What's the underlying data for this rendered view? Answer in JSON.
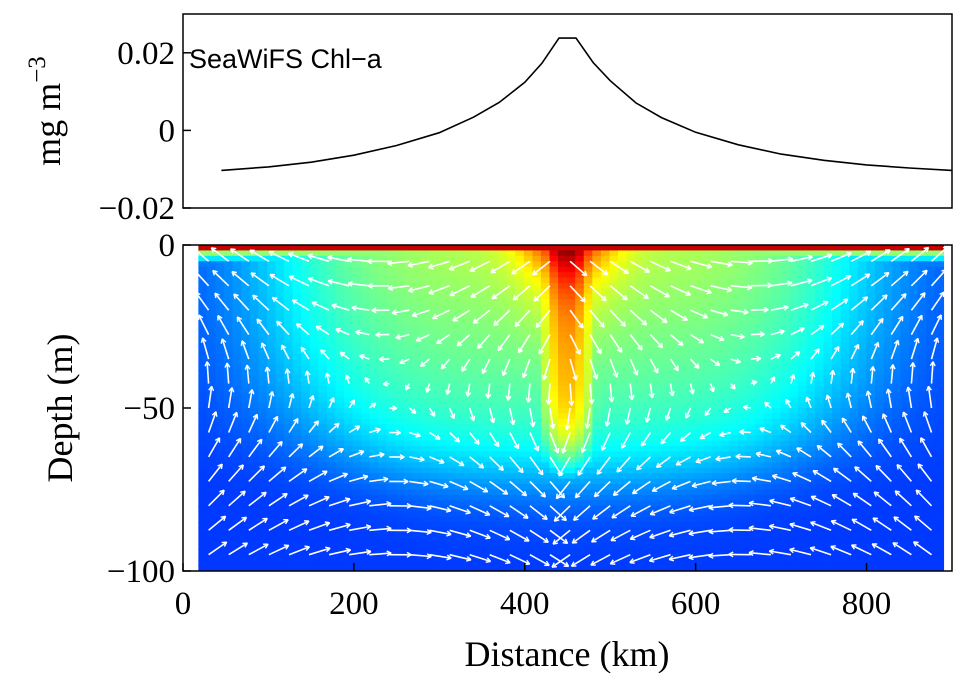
{
  "chart_data": [
    {
      "type": "line",
      "title": "",
      "annotation": "SeaWiFS Chl−a",
      "ylabel": "mg m",
      "ylabel_exponent": "−3",
      "xlim": [
        0,
        900
      ],
      "ylim": [
        -0.02,
        0.03
      ],
      "yticks": [
        {
          "value": 0.02,
          "label": "0.02"
        },
        {
          "value": 0,
          "label": "0"
        },
        {
          "value": -0.02,
          "label": "−0.02"
        }
      ],
      "grid": false,
      "series": [
        {
          "x": [
            45,
            100,
            150,
            200,
            250,
            300,
            340,
            370,
            400,
            420,
            440,
            460,
            480,
            500,
            530,
            560,
            600,
            650,
            700,
            750,
            800,
            850,
            900
          ],
          "y": [
            -0.0103,
            -0.0094,
            -0.0082,
            -0.0064,
            -0.0039,
            -0.0006,
            0.0034,
            0.0072,
            0.0124,
            0.0173,
            0.0238,
            0.0238,
            0.0175,
            0.0128,
            0.0071,
            0.0033,
            -0.0005,
            -0.0037,
            -0.0061,
            -0.0077,
            -0.0089,
            -0.0097,
            -0.0103
          ]
        }
      ]
    },
    {
      "type": "heatmap",
      "title": "",
      "xlabel": "Distance (km)",
      "ylabel": "Depth (m)",
      "xlim": [
        0,
        900
      ],
      "ylim": [
        -100,
        0
      ],
      "xticks": [
        {
          "value": 0,
          "label": "0"
        },
        {
          "value": 200,
          "label": "200"
        },
        {
          "value": 400,
          "label": "400"
        },
        {
          "value": 600,
          "label": "600"
        },
        {
          "value": 800,
          "label": "800"
        }
      ],
      "yticks": [
        {
          "value": 0,
          "label": "0"
        },
        {
          "value": -50,
          "label": "−50"
        },
        {
          "value": -100,
          "label": "−100"
        }
      ],
      "field_extent_x": [
        18,
        890
      ],
      "field_center_x": 450,
      "colormap": [
        "#00008f",
        "#0000ff",
        "#0080ff",
        "#00ffff",
        "#80ff80",
        "#ffff00",
        "#ff8000",
        "#ff0000",
        "#800000"
      ],
      "vectors": "two counter-rotating overturning cells: flow toward x=450 km near the surface, downwelling along x=450 km, outflow near 85 m depth, upwelling near the edges",
      "vector_color": "#ffffff",
      "grid": false
    }
  ]
}
